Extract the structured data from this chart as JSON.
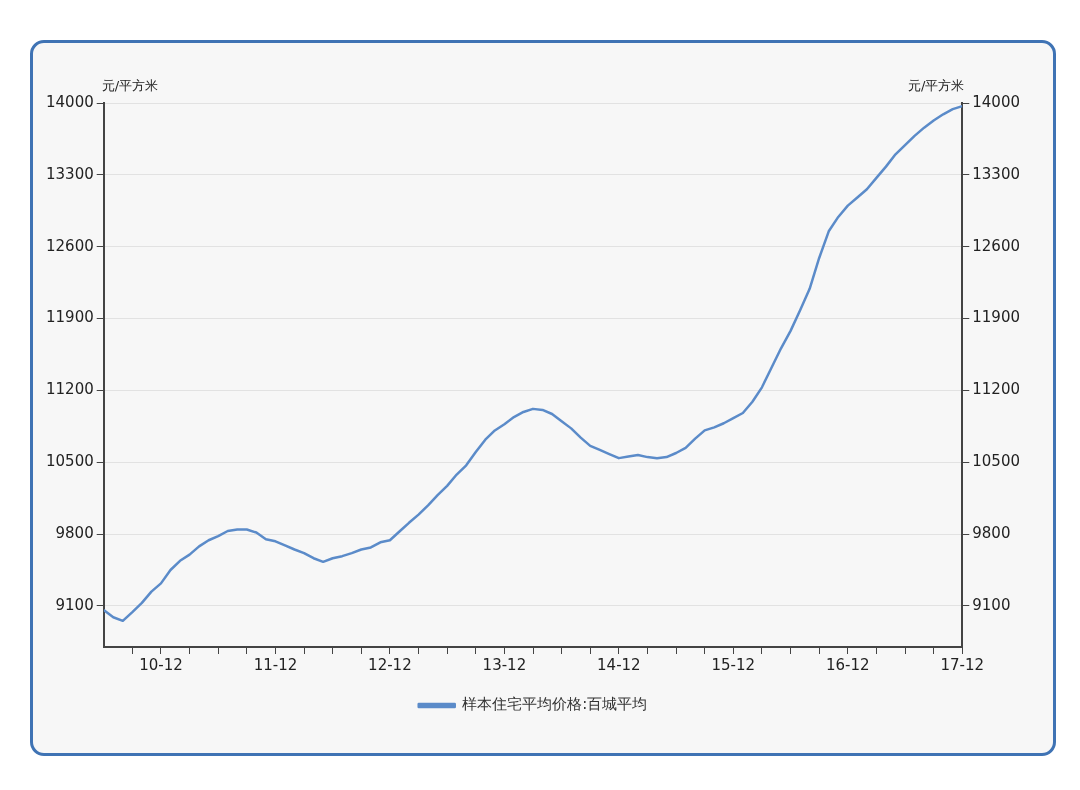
{
  "chart_data": {
    "type": "line",
    "ylabel": "元/平方米",
    "y2label": "元/平方米",
    "x": [
      "2010-06",
      "2010-07",
      "2010-08",
      "2010-09",
      "2010-10",
      "2010-11",
      "2010-12",
      "2011-01",
      "2011-02",
      "2011-03",
      "2011-04",
      "2011-05",
      "2011-06",
      "2011-07",
      "2011-08",
      "2011-09",
      "2011-10",
      "2011-11",
      "2011-12",
      "2012-01",
      "2012-02",
      "2012-03",
      "2012-04",
      "2012-05",
      "2012-06",
      "2012-07",
      "2012-08",
      "2012-09",
      "2012-10",
      "2012-11",
      "2012-12",
      "2013-01",
      "2013-02",
      "2013-03",
      "2013-04",
      "2013-05",
      "2013-06",
      "2013-07",
      "2013-08",
      "2013-09",
      "2013-10",
      "2013-11",
      "2013-12",
      "2014-01",
      "2014-02",
      "2014-03",
      "2014-04",
      "2014-05",
      "2014-06",
      "2014-07",
      "2014-08",
      "2014-09",
      "2014-10",
      "2014-11",
      "2014-12",
      "2015-01",
      "2015-02",
      "2015-03",
      "2015-04",
      "2015-05",
      "2015-06",
      "2015-07",
      "2015-08",
      "2015-09",
      "2015-10",
      "2015-11",
      "2015-12",
      "2016-01",
      "2016-02",
      "2016-03",
      "2016-04",
      "2016-05",
      "2016-06",
      "2016-07",
      "2016-08",
      "2016-09",
      "2016-10",
      "2016-11",
      "2016-12",
      "2017-01",
      "2017-02",
      "2017-03",
      "2017-04",
      "2017-05",
      "2017-06",
      "2017-07",
      "2017-08",
      "2017-09",
      "2017-10",
      "2017-11",
      "2017-12"
    ],
    "series": [
      {
        "name": "样本住宅平均价格:百城平均",
        "color": "#5b8bc9",
        "values": [
          9060,
          8990,
          8955,
          9040,
          9130,
          9240,
          9320,
          9450,
          9540,
          9600,
          9680,
          9740,
          9780,
          9830,
          9845,
          9845,
          9815,
          9750,
          9730,
          9690,
          9650,
          9615,
          9565,
          9530,
          9565,
          9585,
          9615,
          9650,
          9670,
          9720,
          9740,
          9825,
          9910,
          9990,
          10080,
          10180,
          10270,
          10380,
          10470,
          10600,
          10720,
          10810,
          10870,
          10940,
          10990,
          11020,
          11010,
          10970,
          10900,
          10830,
          10740,
          10660,
          10620,
          10580,
          10540,
          10555,
          10570,
          10550,
          10540,
          10550,
          10590,
          10640,
          10730,
          10810,
          10840,
          10880,
          10930,
          10980,
          11090,
          11230,
          11420,
          11610,
          11780,
          11980,
          12190,
          12490,
          12750,
          12890,
          13000,
          13080,
          13160,
          13270,
          13380,
          13500,
          13590,
          13680,
          13760,
          13830,
          13890,
          13940,
          13970
        ]
      }
    ],
    "xlim": [
      "2010-06",
      "2017-12"
    ],
    "xticks": [
      {
        "value": "2010-09",
        "label": null
      },
      {
        "value": "2010-12",
        "label": "10-12"
      },
      {
        "value": "2011-03",
        "label": null
      },
      {
        "value": "2011-06",
        "label": null
      },
      {
        "value": "2011-09",
        "label": null
      },
      {
        "value": "2011-12",
        "label": "11-12"
      },
      {
        "value": "2012-03",
        "label": null
      },
      {
        "value": "2012-06",
        "label": null
      },
      {
        "value": "2012-09",
        "label": null
      },
      {
        "value": "2012-12",
        "label": "12-12"
      },
      {
        "value": "2013-03",
        "label": null
      },
      {
        "value": "2013-06",
        "label": null
      },
      {
        "value": "2013-09",
        "label": null
      },
      {
        "value": "2013-12",
        "label": "13-12"
      },
      {
        "value": "2014-03",
        "label": null
      },
      {
        "value": "2014-06",
        "label": null
      },
      {
        "value": "2014-09",
        "label": null
      },
      {
        "value": "2014-12",
        "label": "14-12"
      },
      {
        "value": "2015-03",
        "label": null
      },
      {
        "value": "2015-06",
        "label": null
      },
      {
        "value": "2015-09",
        "label": null
      },
      {
        "value": "2015-12",
        "label": "15-12"
      },
      {
        "value": "2016-03",
        "label": null
      },
      {
        "value": "2016-06",
        "label": null
      },
      {
        "value": "2016-09",
        "label": null
      },
      {
        "value": "2016-12",
        "label": "16-12"
      },
      {
        "value": "2017-03",
        "label": null
      },
      {
        "value": "2017-06",
        "label": null
      },
      {
        "value": "2017-09",
        "label": null
      },
      {
        "value": "2017-12",
        "label": "17-12"
      }
    ],
    "ylim": [
      8700,
      14000
    ],
    "yticks": [
      9100,
      9800,
      10500,
      11200,
      11900,
      12600,
      13300,
      14000
    ],
    "y2lim": [
      8700,
      14000
    ],
    "y2ticks": [
      9100,
      9800,
      10500,
      11200,
      11900,
      12600,
      13300,
      14000
    ],
    "grid": "y",
    "legend": "bottom",
    "marker": "none",
    "line_style": "solid"
  }
}
